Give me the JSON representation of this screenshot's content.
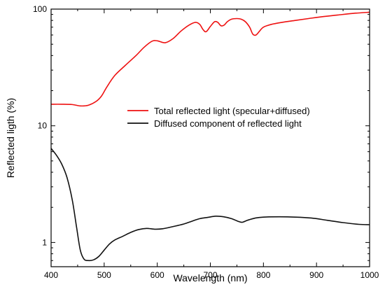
{
  "chart_data": {
    "type": "line",
    "xlabel": "Wavelength (nm)",
    "ylabel": "Reflected ligth (%)",
    "xlim": [
      400,
      1000
    ],
    "ylim": [
      0.62,
      100
    ],
    "yscale": "log",
    "x_ticks": [
      400,
      500,
      600,
      700,
      800,
      900,
      1000
    ],
    "x_tick_labels": [
      "400",
      "500",
      "600",
      "700",
      "800",
      "900",
      "1000"
    ],
    "y_ticks": [
      1,
      10,
      100
    ],
    "y_tick_labels": [
      "1",
      "10",
      "100"
    ],
    "grid": false,
    "legend_position": "center-right",
    "series": [
      {
        "name": "Total reflected light (specular+diffused)",
        "color": "#ee1111",
        "x": [
          400,
          420,
          440,
          455,
          470,
          485,
          495,
          505,
          520,
          540,
          560,
          575,
          590,
          600,
          615,
          630,
          645,
          660,
          672,
          680,
          686,
          692,
          700,
          708,
          714,
          720,
          726,
          732,
          740,
          750,
          758,
          766,
          774,
          780,
          786,
          793,
          800,
          815,
          835,
          860,
          885,
          910,
          940,
          970,
          1000
        ],
        "values": [
          15.3,
          15.3,
          15.2,
          14.8,
          15.0,
          16.2,
          18.0,
          21.5,
          27.0,
          33.0,
          40.0,
          47.0,
          53.0,
          53.5,
          51.5,
          56.0,
          65.0,
          73.0,
          77.0,
          74.0,
          67.0,
          64.0,
          71.0,
          78.0,
          77.0,
          72.0,
          73.0,
          78.0,
          82.0,
          83.0,
          82.0,
          78.0,
          70.0,
          61.0,
          60.0,
          65.0,
          70.0,
          74.0,
          77.0,
          80.0,
          83.0,
          86.0,
          89.0,
          92.0,
          94.0
        ]
      },
      {
        "name": "Diffused component of reflected light",
        "color": "#111111",
        "x": [
          400,
          410,
          420,
          430,
          440,
          448,
          455,
          462,
          470,
          480,
          490,
          500,
          510,
          520,
          535,
          550,
          565,
          580,
          595,
          610,
          630,
          650,
          665,
          680,
          695,
          710,
          725,
          740,
          752,
          760,
          770,
          785,
          800,
          830,
          860,
          890,
          920,
          950,
          980,
          1000
        ],
        "values": [
          6.4,
          5.6,
          4.7,
          3.6,
          2.3,
          1.35,
          0.86,
          0.72,
          0.7,
          0.71,
          0.76,
          0.86,
          0.97,
          1.05,
          1.13,
          1.22,
          1.29,
          1.32,
          1.3,
          1.31,
          1.37,
          1.44,
          1.52,
          1.6,
          1.64,
          1.68,
          1.66,
          1.6,
          1.52,
          1.49,
          1.55,
          1.62,
          1.65,
          1.66,
          1.65,
          1.62,
          1.55,
          1.48,
          1.43,
          1.42
        ]
      }
    ]
  }
}
